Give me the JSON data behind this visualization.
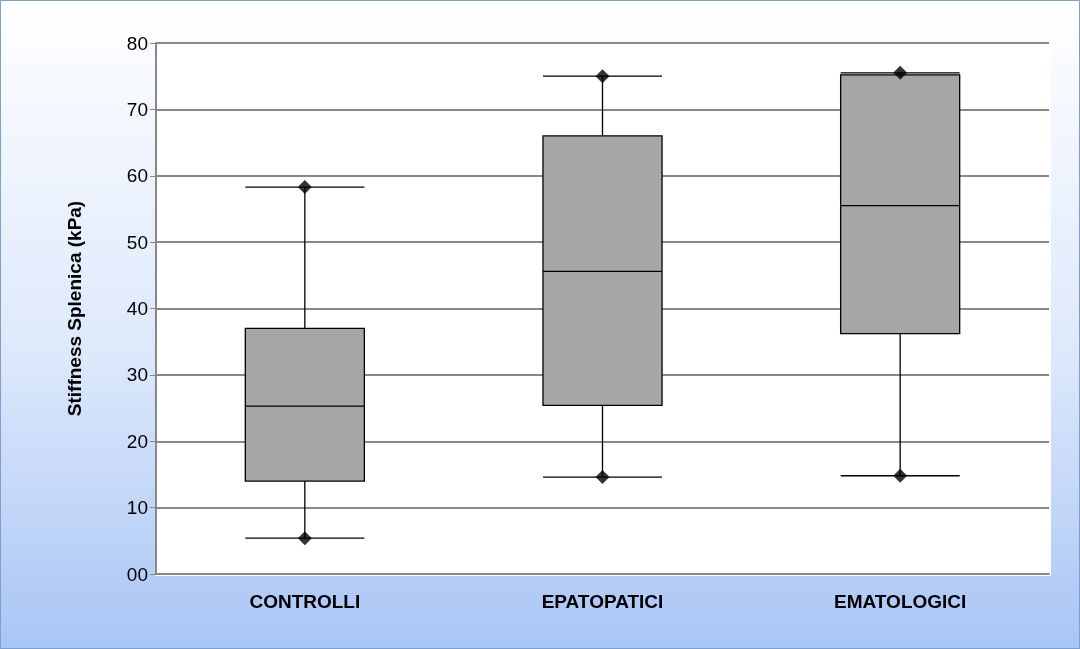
{
  "chart_data": {
    "type": "box",
    "ylabel": "Stiffness Splenica (kPa)",
    "categories": [
      "CONTROLLI",
      "EPATOPATICI",
      "EMATOLOGICI"
    ],
    "boxes": [
      {
        "low": 5.4,
        "q1": 14,
        "median": 25.3,
        "q3": 37,
        "high": 58.3
      },
      {
        "low": 14.6,
        "q1": 25.4,
        "median": 45.6,
        "q3": 66,
        "high": 75
      },
      {
        "low": 14.8,
        "q1": 36.2,
        "median": 55.5,
        "q3": 75.2,
        "high": 75.5
      }
    ],
    "color": "#a6a6a6",
    "series": [
      {
        "type": "scatter",
        "color": "#000000",
        "marker": "diamond",
        "x": [
          "CONTROLLI",
          "CONTROLLI",
          "EPATOPATICI",
          "EPATOPATICI",
          "EMATOLOGICI",
          "EMATOLOGICI"
        ],
        "values": [
          58.3,
          5.4,
          75,
          14.6,
          75.5,
          14.8
        ]
      }
    ],
    "ylim": [
      0,
      80
    ],
    "yticks": [
      {
        "value": 0,
        "label": "00"
      },
      10,
      20,
      30,
      40,
      50,
      60,
      70,
      80
    ],
    "grid": "y"
  }
}
